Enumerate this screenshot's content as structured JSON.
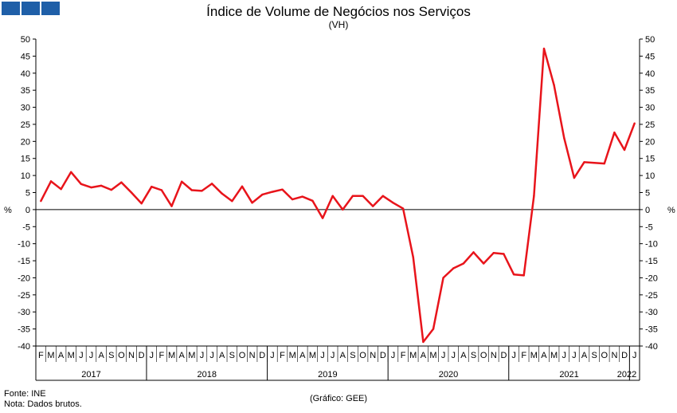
{
  "chart_data": {
    "type": "line",
    "title": "Índice de Volume de Negócios nos Serviços",
    "subtitle": "(VH)",
    "ylabel": "%",
    "ylim": [
      -40,
      50
    ],
    "yticks": [
      50,
      45,
      40,
      35,
      30,
      25,
      20,
      15,
      10,
      5,
      0,
      -5,
      -10,
      -15,
      -20,
      -25,
      -30,
      -35,
      -40
    ],
    "month_labels": [
      "F",
      "M",
      "A",
      "M",
      "J",
      "J",
      "A",
      "S",
      "O",
      "N",
      "D",
      "J",
      "F",
      "M",
      "A",
      "M",
      "J",
      "J",
      "A",
      "S",
      "O",
      "N",
      "D",
      "J",
      "F",
      "M",
      "A",
      "M",
      "J",
      "J",
      "A",
      "S",
      "O",
      "N",
      "D",
      "J",
      "F",
      "M",
      "A",
      "M",
      "J",
      "J",
      "A",
      "S",
      "O",
      "N",
      "D",
      "J",
      "F",
      "M",
      "A",
      "M",
      "J",
      "J",
      "A",
      "S",
      "O",
      "N",
      "D",
      "J"
    ],
    "year_labels": [
      {
        "label": "2017",
        "start": 0,
        "end": 10
      },
      {
        "label": "2018",
        "start": 11,
        "end": 22
      },
      {
        "label": "2019",
        "start": 23,
        "end": 34
      },
      {
        "label": "2020",
        "start": 35,
        "end": 46
      },
      {
        "label": "2021",
        "start": 47,
        "end": 58
      },
      {
        "label": "2022",
        "start": 59,
        "end": 59
      }
    ],
    "series": [
      {
        "color": "#e8141b",
        "values": [
          2.5,
          8.3,
          6.0,
          11.0,
          7.5,
          6.5,
          7.0,
          5.8,
          8.0,
          5.0,
          1.8,
          6.7,
          5.7,
          1.0,
          8.2,
          5.7,
          5.5,
          7.6,
          4.7,
          2.5,
          6.8,
          2.0,
          4.4,
          5.2,
          5.9,
          3.0,
          3.8,
          2.6,
          -2.5,
          4.0,
          0.0,
          4.0,
          4.0,
          1.0,
          4.0,
          2.0,
          0.3,
          -14.0,
          -38.8,
          -35.0,
          -20.0,
          -17.2,
          -15.8,
          -12.5,
          -15.8,
          -12.7,
          -13.0,
          -19.0,
          -19.3,
          4.0,
          47.2,
          36.5,
          21.0,
          9.3,
          13.9,
          13.7,
          13.5,
          22.6,
          17.5,
          25.3
        ]
      }
    ]
  },
  "footer": {
    "source": "Fonte: INE",
    "note": "Nota: Dados brutos.",
    "credit": "(Gráfico: GEE)"
  }
}
